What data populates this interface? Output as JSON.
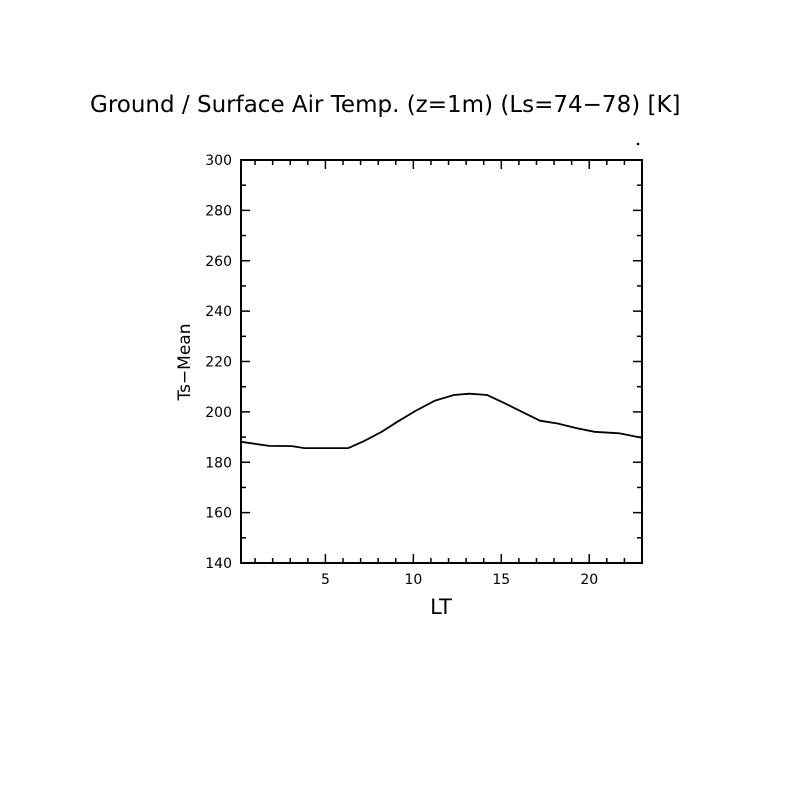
{
  "chart_data": {
    "type": "line",
    "title": "Ground / Surface Air Temp. (z=1m) (Ls=74−78) [K]",
    "xlabel": "LT",
    "ylabel": "Ts−Mean",
    "xlim": [
      0.2,
      23.0
    ],
    "ylim": [
      140,
      300
    ],
    "xticks": [
      5,
      10,
      15,
      20
    ],
    "xtick_labels": [
      "5",
      "10",
      "15",
      "20"
    ],
    "x_minor_step": 1,
    "yticks": [
      140,
      160,
      180,
      200,
      220,
      240,
      260,
      280,
      300
    ],
    "ytick_labels": [
      "140",
      "160",
      "180",
      "200",
      "220",
      "240",
      "260",
      "280",
      "300"
    ],
    "y_minor_step": 10,
    "grid": false,
    "series": [
      {
        "name": "Ts-Mean",
        "color": "#000000",
        "x": [
          0.2,
          1.8,
          3.1,
          3.8,
          6.3,
          7.2,
          8.2,
          9.1,
          10.1,
          11.2,
          12.3,
          13.2,
          14.2,
          15.2,
          16.3,
          17.2,
          18.2,
          19.3,
          20.3,
          21.7,
          23.0
        ],
        "y": [
          188.1,
          186.5,
          186.4,
          185.6,
          185.6,
          188.4,
          192.1,
          196.1,
          200.3,
          204.4,
          206.7,
          207.2,
          206.7,
          203.4,
          199.6,
          196.5,
          195.4,
          193.5,
          192.1,
          191.5,
          189.7
        ]
      }
    ]
  }
}
